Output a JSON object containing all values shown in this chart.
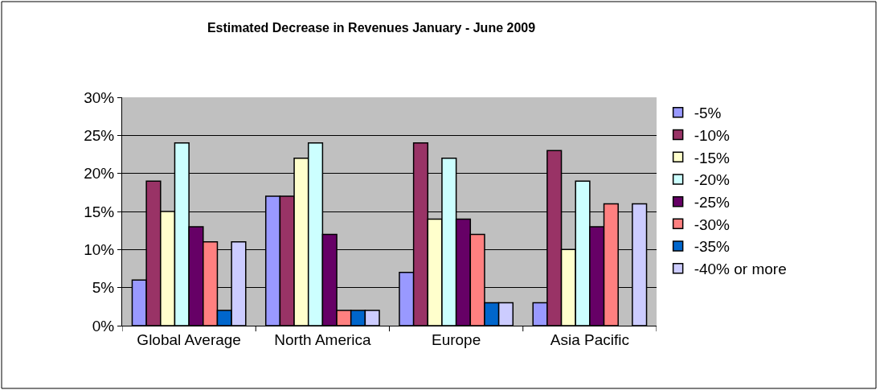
{
  "chart_data": {
    "type": "bar",
    "title": "Estimated Decrease in Revenues January - June 2009",
    "categories": [
      "Global Average",
      "North America",
      "Europe",
      "Asia Pacific"
    ],
    "series": [
      {
        "name": "-5%",
        "color": "#9999ff",
        "values": [
          6,
          17,
          7,
          3
        ]
      },
      {
        "name": "-10%",
        "color": "#993366",
        "values": [
          19,
          17,
          24,
          23
        ]
      },
      {
        "name": "-15%",
        "color": "#ffffcc",
        "values": [
          15,
          22,
          14,
          10
        ]
      },
      {
        "name": "-20%",
        "color": "#ccffff",
        "values": [
          24,
          24,
          22,
          19
        ]
      },
      {
        "name": "-25%",
        "color": "#660066",
        "values": [
          13,
          12,
          14,
          13
        ]
      },
      {
        "name": "-30%",
        "color": "#ff8080",
        "values": [
          11,
          2,
          12,
          16
        ]
      },
      {
        "name": "-35%",
        "color": "#0066cc",
        "values": [
          2,
          2,
          3,
          null
        ]
      },
      {
        "name": "-40% or more",
        "color": "#ccccff",
        "values": [
          11,
          2,
          3,
          16
        ]
      }
    ],
    "ylim": [
      0,
      30
    ],
    "yticks": [
      {
        "value": 0,
        "label": "0%"
      },
      {
        "value": 5,
        "label": "5%"
      },
      {
        "value": 10,
        "label": "10%"
      },
      {
        "value": 15,
        "label": "15%"
      },
      {
        "value": 20,
        "label": "20%"
      },
      {
        "value": 25,
        "label": "25%"
      },
      {
        "value": 30,
        "label": "30%"
      }
    ],
    "grid": "y",
    "legend": "right"
  }
}
